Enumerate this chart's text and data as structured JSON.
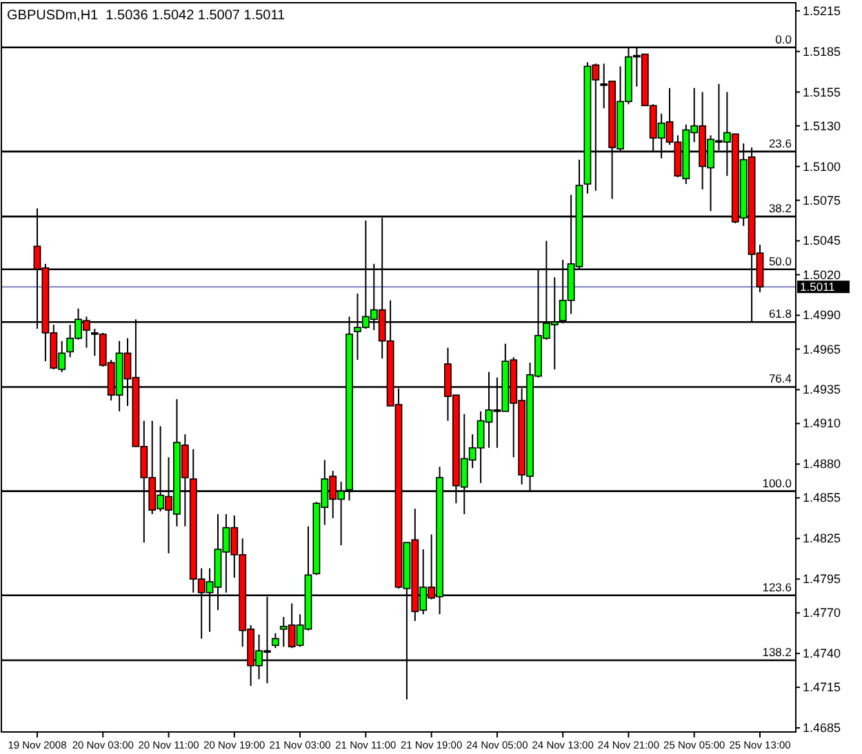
{
  "chart_data": {
    "type": "candlestick",
    "title": "GBPUSDm,H1  1.5036 1.5042 1.5007 1.5011",
    "categories": [
      "19 Nov 2008",
      null,
      null,
      null,
      null,
      null,
      null,
      null,
      "20 Nov 03:00",
      null,
      null,
      null,
      null,
      null,
      null,
      null,
      "20 Nov 11:00",
      null,
      null,
      null,
      null,
      null,
      null,
      null,
      "20 Nov 19:00",
      null,
      null,
      null,
      null,
      null,
      null,
      null,
      "21 Nov 03:00",
      null,
      null,
      null,
      null,
      null,
      null,
      null,
      "21 Nov 11:00",
      null,
      null,
      null,
      null,
      null,
      null,
      null,
      "21 Nov 19:00",
      null,
      null,
      null,
      null,
      null,
      null,
      null,
      "24 Nov 05:00",
      null,
      null,
      null,
      null,
      null,
      null,
      null,
      "24 Nov 13:00",
      null,
      null,
      null,
      null,
      null,
      null,
      null,
      "24 Nov 21:00",
      null,
      null,
      null,
      null,
      null,
      null,
      null,
      "25 Nov 05:00",
      null,
      null,
      null,
      null,
      null,
      null,
      null,
      "25 Nov 13:00"
    ],
    "ohlc": [
      [
        1.5041,
        1.5069,
        1.498,
        1.5024
      ],
      [
        1.5025,
        1.5028,
        1.4956,
        1.4977
      ],
      [
        1.4977,
        1.4983,
        1.495,
        1.4951
      ],
      [
        1.495,
        1.4971,
        1.4948,
        1.4962
      ],
      [
        1.4963,
        1.4983,
        1.4959,
        1.4973
      ],
      [
        1.4973,
        1.4995,
        1.4972,
        1.4987
      ],
      [
        1.4986,
        1.4989,
        1.4966,
        1.4979
      ],
      [
        1.4977,
        1.498,
        1.496,
        1.4977
      ],
      [
        1.4976,
        1.4977,
        1.4952,
        1.4953
      ],
      [
        1.4955,
        1.4957,
        1.4927,
        1.4931
      ],
      [
        1.4931,
        1.4971,
        1.4919,
        1.4962
      ],
      [
        1.4962,
        1.4973,
        1.4923,
        1.4943
      ],
      [
        1.4944,
        1.4987,
        1.4893,
        1.4893
      ],
      [
        1.4893,
        1.4912,
        1.4822,
        1.487
      ],
      [
        1.487,
        1.4912,
        1.4843,
        1.4846
      ],
      [
        1.4847,
        1.4908,
        1.4845,
        1.4857
      ],
      [
        1.4856,
        1.4885,
        1.4814,
        1.4846
      ],
      [
        1.4843,
        1.4928,
        1.4834,
        1.4896
      ],
      [
        1.4894,
        1.4902,
        1.4834,
        1.487
      ],
      [
        1.4869,
        1.4891,
        1.4785,
        1.4795
      ],
      [
        1.4795,
        1.4803,
        1.4751,
        1.4785
      ],
      [
        1.4785,
        1.4803,
        1.4756,
        1.4793
      ],
      [
        1.4789,
        1.4843,
        1.4772,
        1.4817
      ],
      [
        1.4815,
        1.4843,
        1.4785,
        1.4833
      ],
      [
        1.4833,
        1.4842,
        1.4796,
        1.4813
      ],
      [
        1.4813,
        1.4825,
        1.4745,
        1.4757
      ],
      [
        1.4758,
        1.4761,
        1.4716,
        1.4731
      ],
      [
        1.4731,
        1.4754,
        1.4721,
        1.4742
      ],
      [
        1.4742,
        1.4782,
        1.4718,
        1.4742
      ],
      [
        1.4746,
        1.4755,
        1.4744,
        1.4751
      ],
      [
        1.4758,
        1.4767,
        1.4745,
        1.476
      ],
      [
        1.4761,
        1.4777,
        1.4744,
        1.4745
      ],
      [
        1.4746,
        1.4769,
        1.4745,
        1.4761
      ],
      [
        1.4758,
        1.4834,
        1.4757,
        1.4798
      ],
      [
        1.4799,
        1.4852,
        1.4798,
        1.4851
      ],
      [
        1.4848,
        1.4883,
        1.4835,
        1.4869
      ],
      [
        1.4871,
        1.4875,
        1.484,
        1.4854
      ],
      [
        1.4854,
        1.4867,
        1.482,
        1.486
      ],
      [
        1.4861,
        1.4989,
        1.4853,
        1.4976
      ],
      [
        1.4978,
        1.5006,
        1.4957,
        1.4981
      ],
      [
        1.4981,
        1.506,
        1.498,
        1.4989
      ],
      [
        1.4987,
        1.5028,
        1.4979,
        1.4994
      ],
      [
        1.4994,
        1.5062,
        1.4958,
        1.4971
      ],
      [
        1.4971,
        1.5001,
        1.4923,
        1.4923
      ],
      [
        1.4924,
        1.4936,
        1.4788,
        1.4789
      ],
      [
        1.4788,
        1.4822,
        1.4706,
        1.4822
      ],
      [
        1.4824,
        1.4847,
        1.4764,
        1.4771
      ],
      [
        1.4772,
        1.4817,
        1.4769,
        1.4789
      ],
      [
        1.4789,
        1.4828,
        1.478,
        1.4781
      ],
      [
        1.4782,
        1.4878,
        1.4769,
        1.487
      ],
      [
        1.4954,
        1.4966,
        1.4912,
        1.493
      ],
      [
        1.4931,
        1.4931,
        1.4851,
        1.4864
      ],
      [
        1.4863,
        1.4917,
        1.4843,
        1.4884
      ],
      [
        1.4883,
        1.4902,
        1.4877,
        1.4892
      ],
      [
        1.4892,
        1.4919,
        1.4866,
        1.4912
      ],
      [
        1.4911,
        1.4948,
        1.4892,
        1.492
      ],
      [
        1.492,
        1.4944,
        1.4892,
        1.492
      ],
      [
        1.4919,
        1.4969,
        1.4919,
        1.4956
      ],
      [
        1.4957,
        1.4959,
        1.4885,
        1.4925
      ],
      [
        1.4927,
        1.4936,
        1.4865,
        1.4872
      ],
      [
        1.4871,
        1.4955,
        1.486,
        1.4946
      ],
      [
        1.4945,
        1.5024,
        1.4944,
        1.4975
      ],
      [
        1.4973,
        1.5045,
        1.4972,
        1.4984
      ],
      [
        1.4983,
        1.5018,
        1.495,
        1.4985
      ],
      [
        1.4986,
        1.5031,
        1.4984,
        1.5001
      ],
      [
        1.5001,
        1.5079,
        1.4991,
        1.5028
      ],
      [
        1.5026,
        1.5105,
        1.5024,
        1.5086
      ],
      [
        1.5087,
        1.5177,
        1.508,
        1.5174
      ],
      [
        1.5175,
        1.5176,
        1.5082,
        1.5164
      ],
      [
        1.5161,
        1.5176,
        1.5143,
        1.5161
      ],
      [
        1.5163,
        1.5163,
        1.5076,
        1.5114
      ],
      [
        1.5113,
        1.5174,
        1.5111,
        1.5148
      ],
      [
        1.5148,
        1.5188,
        1.5146,
        1.5181
      ],
      [
        1.5182,
        1.5188,
        1.5159,
        1.5182
      ],
      [
        1.5183,
        1.5183,
        1.5145,
        1.5145
      ],
      [
        1.5145,
        1.5146,
        1.5111,
        1.5121
      ],
      [
        1.5121,
        1.5139,
        1.5106,
        1.5132
      ],
      [
        1.5133,
        1.5158,
        1.5116,
        1.5118
      ],
      [
        1.5118,
        1.5123,
        1.5092,
        1.5093
      ],
      [
        1.5091,
        1.5131,
        1.5087,
        1.5127
      ],
      [
        1.5125,
        1.5158,
        1.5118,
        1.513
      ],
      [
        1.513,
        1.5155,
        1.5083,
        1.51
      ],
      [
        1.5099,
        1.5123,
        1.5067,
        1.512
      ],
      [
        1.5119,
        1.5161,
        1.5112,
        1.5119
      ],
      [
        1.5118,
        1.5155,
        1.5093,
        1.5125
      ],
      [
        1.5124,
        1.5124,
        1.5058,
        1.5059
      ],
      [
        1.5062,
        1.5117,
        1.5056,
        1.5105
      ],
      [
        1.5107,
        1.5114,
        1.4985,
        1.5035
      ],
      [
        1.5036,
        1.5042,
        1.5007,
        1.5011
      ]
    ],
    "colors": [
      "#ff0000",
      "#ff0000",
      "#ff0000",
      "#00ff00",
      "#00ff00",
      "#00ff00",
      "#ff0000",
      "#000000",
      "#ff0000",
      "#ff0000",
      "#00ff00",
      "#ff0000",
      "#ff0000",
      "#ff0000",
      "#ff0000",
      "#00ff00",
      "#ff0000",
      "#00ff00",
      "#ff0000",
      "#ff0000",
      "#ff0000",
      "#00ff00",
      "#00ff00",
      "#00ff00",
      "#ff0000",
      "#ff0000",
      "#ff0000",
      "#00ff00",
      "#000000",
      "#00ff00",
      "#00ff00",
      "#ff0000",
      "#00ff00",
      "#00ff00",
      "#00ff00",
      "#00ff00",
      "#ff0000",
      "#00ff00",
      "#00ff00",
      "#00ff00",
      "#00ff00",
      "#00ff00",
      "#ff0000",
      "#ff0000",
      "#ff0000",
      "#00ff00",
      "#ff0000",
      "#00ff00",
      "#ff0000",
      "#00ff00",
      "#ff0000",
      "#ff0000",
      "#00ff00",
      "#00ff00",
      "#00ff00",
      "#00ff00",
      "#000000",
      "#00ff00",
      "#ff0000",
      "#ff0000",
      "#00ff00",
      "#00ff00",
      "#00ff00",
      "#00ff00",
      "#00ff00",
      "#00ff00",
      "#00ff00",
      "#00ff00",
      "#ff0000",
      "#000000",
      "#ff0000",
      "#00ff00",
      "#00ff00",
      "#000000",
      "#ff0000",
      "#ff0000",
      "#00ff00",
      "#ff0000",
      "#ff0000",
      "#00ff00",
      "#00ff00",
      "#ff0000",
      "#00ff00",
      "#000000",
      "#00ff00",
      "#ff0000",
      "#00ff00",
      "#ff0000",
      "#ff0000"
    ],
    "ylim": [
      1.4682,
      1.5221
    ],
    "yticks": [
      1.5215,
      1.5185,
      1.5155,
      {
        "value": 1.513,
        "label": "1.5130"
      },
      {
        "value": 1.51,
        "label": "1.5100"
      },
      1.5075,
      1.5045,
      {
        "value": 1.502,
        "label": "1.5020"
      },
      {
        "value": 1.499,
        "label": "1.4990"
      },
      1.4965,
      1.4935,
      {
        "value": 1.491,
        "label": "1.4910"
      },
      {
        "value": 1.488,
        "label": "1.4880"
      },
      1.4855,
      1.4825,
      1.4795,
      {
        "value": 1.477,
        "label": "1.4770"
      },
      {
        "value": 1.474,
        "label": "1.4740"
      },
      1.4715,
      1.4685
    ],
    "ref_lines": [
      {
        "axis": "y",
        "value": 1.5188,
        "color": "#000000"
      },
      {
        "axis": "y",
        "value": 1.5111,
        "color": "#000000"
      },
      {
        "axis": "y",
        "value": 1.5063,
        "color": "#000000"
      },
      {
        "axis": "y",
        "value": 1.5024,
        "color": "#000000"
      },
      {
        "axis": "y",
        "value": 1.4985,
        "color": "#000000"
      },
      {
        "axis": "y",
        "value": 1.4937,
        "color": "#000000"
      },
      {
        "axis": "y",
        "value": 1.486,
        "color": "#000000"
      },
      {
        "axis": "y",
        "value": 1.4783,
        "color": "#000000"
      },
      {
        "axis": "y",
        "value": 1.4735,
        "color": "#000000"
      },
      {
        "axis": "y",
        "value": 1.5011,
        "label": "1.5011",
        "color": "#8080c0"
      }
    ],
    "annotations": [
      {
        "text": "0.0",
        "y": 1.5188
      },
      {
        "text": "23.6",
        "y": 1.5111
      },
      {
        "text": "38.2",
        "y": 1.5063
      },
      {
        "text": "50.0",
        "y": 1.5024
      },
      {
        "text": "61.8",
        "y": 1.4985
      },
      {
        "text": "76.4",
        "y": 1.4937
      },
      {
        "text": "100.0",
        "y": 1.486
      },
      {
        "text": "123.6",
        "y": 1.4783
      },
      {
        "text": "138.2",
        "y": 1.4735
      }
    ],
    "grid": false
  }
}
